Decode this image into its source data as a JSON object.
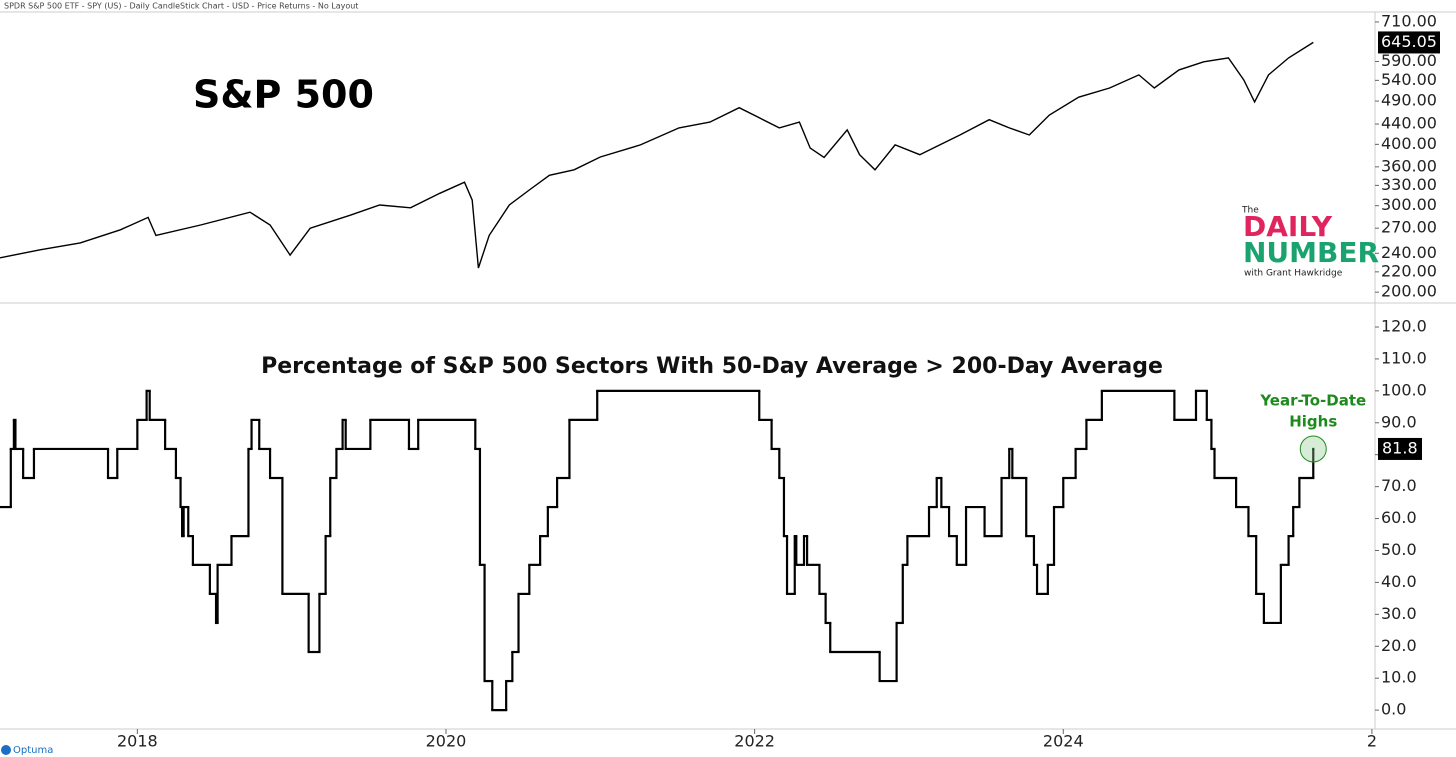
{
  "header": "SPDR S&P 500 ETF - SPY (US) - Daily CandleStick Chart - USD - Price Returns - No Layout",
  "logo": {
    "top": "The",
    "line1": "DAILY",
    "line2": "NUMBER",
    "byline": "with Grant Hawkridge"
  },
  "footer": "Optuma",
  "chart_data": [
    {
      "type": "line",
      "title": "S&P 500",
      "log_y": true,
      "line_color": "#000000",
      "x": [
        2017.11,
        2017.37,
        2017.63,
        2017.89,
        2018.07,
        2018.12,
        2018.41,
        2018.73,
        2018.86,
        2018.99,
        2019.12,
        2019.38,
        2019.57,
        2019.77,
        2019.96,
        2020.12,
        2020.17,
        2020.21,
        2020.28,
        2020.41,
        2020.54,
        2020.67,
        2020.83,
        2021.0,
        2021.26,
        2021.51,
        2021.71,
        2021.9,
        2022.03,
        2022.16,
        2022.29,
        2022.36,
        2022.45,
        2022.6,
        2022.68,
        2022.78,
        2022.91,
        2023.07,
        2023.2,
        2023.33,
        2023.52,
        2023.65,
        2023.78,
        2023.91,
        2024.1,
        2024.3,
        2024.49,
        2024.59,
        2024.75,
        2024.91,
        2025.07,
        2025.17,
        2025.24,
        2025.33,
        2025.46,
        2025.62
      ],
      "series": [
        {
          "values": [
            235,
            244,
            252,
            268,
            284,
            261,
            274,
            291,
            274,
            238,
            270,
            287,
            301,
            297,
            318,
            335,
            308,
            224,
            261,
            301,
            323,
            346,
            355,
            377,
            399,
            432,
            444,
            475,
            453,
            432,
            444,
            393,
            376,
            428,
            381,
            355,
            399,
            381,
            399,
            418,
            449,
            432,
            418,
            459,
            499,
            521,
            554,
            521,
            567,
            589,
            600,
            541,
            488,
            554,
            600,
            645.05
          ]
        }
      ],
      "xlim": [
        2017.11,
        2026.02
      ],
      "ylim": [
        191,
        744
      ],
      "yticks": [
        {
          "value": 200,
          "label": "200.00"
        },
        {
          "value": 220,
          "label": "220.00"
        },
        {
          "value": 240,
          "label": "240.00"
        },
        {
          "value": 270,
          "label": "270.00"
        },
        {
          "value": 300,
          "label": "300.00"
        },
        {
          "value": 330,
          "label": "330.00"
        },
        {
          "value": 360,
          "label": "360.00"
        },
        {
          "value": 400,
          "label": "400.00"
        },
        {
          "value": 440,
          "label": "440.00"
        },
        {
          "value": 490,
          "label": "490.00"
        },
        {
          "value": 540,
          "label": "540.00"
        },
        {
          "value": 590,
          "label": "590.00"
        },
        {
          "value": 710,
          "label": "710.00"
        }
      ]
    },
    {
      "type": "step",
      "title": "Percentage of S&P 500 Sectors With 50-Day Average > 200-Day Average",
      "annotation": [
        "Year-To-Date",
        "Highs"
      ],
      "annotation_color": "#1e8a1e",
      "line_color": "#000000",
      "x": [
        2017.11,
        2017.18,
        2017.2,
        2017.21,
        2017.26,
        2017.33,
        2017.81,
        2017.87,
        2018.0,
        2018.06,
        2018.08,
        2018.18,
        2018.25,
        2018.28,
        2018.29,
        2018.3,
        2018.33,
        2018.36,
        2018.47,
        2018.51,
        2018.52,
        2018.61,
        2018.72,
        2018.74,
        2018.79,
        2018.86,
        2018.94,
        2019.11,
        2019.18,
        2019.22,
        2019.25,
        2019.29,
        2019.33,
        2019.35,
        2019.51,
        2019.76,
        2019.82,
        2020.19,
        2020.22,
        2020.25,
        2020.3,
        2020.39,
        2020.43,
        2020.47,
        2020.54,
        2020.61,
        2020.66,
        2020.72,
        2020.8,
        2020.98,
        2022.03,
        2022.11,
        2022.16,
        2022.19,
        2022.21,
        2022.26,
        2022.27,
        2022.32,
        2022.34,
        2022.42,
        2022.46,
        2022.49,
        2022.81,
        2022.92,
        2022.96,
        2022.99,
        2023.13,
        2023.18,
        2023.21,
        2023.26,
        2023.31,
        2023.37,
        2023.49,
        2023.6,
        2023.65,
        2023.67,
        2023.76,
        2023.81,
        2023.83,
        2023.9,
        2023.94,
        2024.0,
        2024.08,
        2024.15,
        2024.25,
        2024.72,
        2024.86,
        2024.93,
        2024.96,
        2024.98,
        2025.12,
        2025.2,
        2025.25,
        2025.3,
        2025.41,
        2025.46,
        2025.49,
        2025.53,
        2025.62
      ],
      "values": [
        63.6,
        81.8,
        90.9,
        81.8,
        72.7,
        81.8,
        72.7,
        81.8,
        90.9,
        100,
        90.9,
        81.8,
        72.7,
        63.6,
        54.5,
        63.6,
        54.5,
        45.5,
        36.4,
        27.3,
        45.5,
        54.5,
        81.8,
        90.9,
        81.8,
        72.7,
        36.4,
        18.2,
        36.4,
        54.5,
        72.7,
        81.8,
        90.9,
        81.8,
        90.9,
        81.8,
        90.9,
        81.8,
        45.5,
        9.1,
        0,
        9.1,
        18.2,
        36.4,
        45.5,
        54.5,
        63.6,
        72.7,
        90.9,
        100,
        90.9,
        81.8,
        72.7,
        54.5,
        36.4,
        54.5,
        45.5,
        54.5,
        45.5,
        36.4,
        27.3,
        18.2,
        9.1,
        27.3,
        45.5,
        54.5,
        63.6,
        72.7,
        63.6,
        54.5,
        45.5,
        63.6,
        54.5,
        72.7,
        81.8,
        72.7,
        54.5,
        45.5,
        36.4,
        45.5,
        63.6,
        72.7,
        81.8,
        90.9,
        100,
        90.9,
        100,
        90.9,
        81.8,
        72.7,
        63.6,
        54.5,
        36.4,
        27.3,
        45.5,
        54.5,
        63.6,
        72.7,
        81.8
      ],
      "xlim": [
        2017.11,
        2026.02
      ],
      "ylim": [
        -5.6,
        127.2
      ],
      "xticks": [
        2018,
        2020,
        2022,
        2024,
        {
          "value": 2026,
          "label": "2"
        }
      ],
      "yticks": [
        {
          "value": 0,
          "label": "0.0"
        },
        {
          "value": 10,
          "label": "10.0"
        },
        {
          "value": 20,
          "label": "20.0"
        },
        {
          "value": 30,
          "label": "30.0"
        },
        {
          "value": 40,
          "label": "40.0"
        },
        {
          "value": 50,
          "label": "50.0"
        },
        {
          "value": 60,
          "label": "60.0"
        },
        {
          "value": 70,
          "label": "70.0"
        },
        {
          "value": 80,
          "label": "80.0"
        },
        {
          "value": 90,
          "label": "90.0"
        },
        {
          "value": 100,
          "label": "100.0"
        },
        {
          "value": 110,
          "label": "110.0"
        },
        {
          "value": 120,
          "label": "120.0"
        }
      ]
    }
  ]
}
